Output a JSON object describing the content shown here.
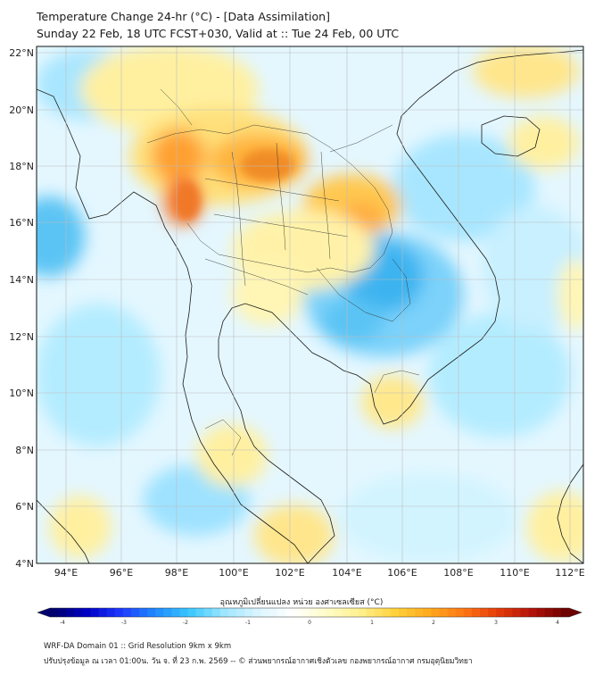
{
  "title_line1": "Temperature Change 24-hr (°C) - [Data Assimilation]",
  "title_line2": "Sunday 22 Feb, 18 UTC FCST+030, Valid at :: Tue 24 Feb, 00 UTC",
  "lat_labels": [
    "22°N",
    "20°N",
    "18°N",
    "16°N",
    "14°N",
    "12°N",
    "10°N",
    "8°N",
    "6°N",
    "4°N"
  ],
  "lon_labels": [
    "94°E",
    "96°E",
    "98°E",
    "100°E",
    "102°E",
    "104°E",
    "106°E",
    "108°E",
    "110°E",
    "112°E"
  ],
  "colorbar": {
    "label": "อุณหภูมิเปลี่ยนแปลง หน่วย องศาเซลเซียส (°C)",
    "ticks": [
      "-4",
      "-3",
      "-2",
      "-1",
      "0",
      "1",
      "2",
      "3",
      "4"
    ],
    "colors": [
      "#00006e",
      "#0000c8",
      "#1e3cff",
      "#1e8cff",
      "#3cc8ff",
      "#9ee6ff",
      "#dcf5ff",
      "#ffffff",
      "#fffcc8",
      "#fff08c",
      "#ffd23c",
      "#ffaa1e",
      "#ff7814",
      "#e63c0a",
      "#b4140a",
      "#6e0000"
    ]
  },
  "footer_line1": "WRF-DA Domain 01 :: Grid Resolution 9km x 9km",
  "footer_line2": "ปรับปรุงข้อมูล ณ เวลา 01:00น. วัน จ. ที่ 23 ก.พ. 2569 -- © ส่วนพยากรณ์อากาศเชิงตัวเลข กองพยากรณ์อากาศ กรมอุตุนิยมวิทยา",
  "field_colors": {
    "warm_dark": "#f07818",
    "warm_mid": "#ffc83c",
    "warm_light": "#fff5b4",
    "neutral": "#f4fbff",
    "cool_light": "#c8f0ff",
    "cool_mid": "#8cdcff",
    "cool_dark": "#3cb4f0"
  }
}
